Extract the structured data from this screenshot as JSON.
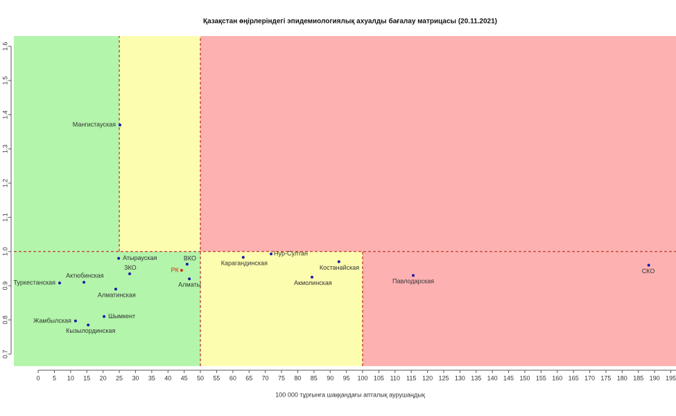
{
  "chart_data": {
    "type": "scatter",
    "title": "Қазақстан өңірлеріндегі эпидемиологиялық ахуалды бағалау матрицасы  (20.11.2021)",
    "xlabel": "100 000 тұрғынға шаққандағы апталық аурушаңдық",
    "xlim": [
      -7.5,
      196.6
    ],
    "ylim": [
      0.665,
      1.63
    ],
    "xticks": [
      0,
      5,
      10,
      15,
      20,
      25,
      30,
      35,
      40,
      45,
      50,
      55,
      60,
      65,
      70,
      75,
      80,
      85,
      90,
      95,
      100,
      105,
      110,
      115,
      120,
      125,
      130,
      135,
      140,
      145,
      150,
      155,
      160,
      165,
      170,
      175,
      180,
      185,
      190,
      195
    ],
    "yticks": [
      0.7,
      0.8,
      0.9,
      {
        "value": 1.0,
        "label": "1.0"
      },
      1.1,
      1.2,
      1.3,
      1.4,
      1.5,
      1.6
    ],
    "zones": [
      {
        "x": [
          -7.5,
          25
        ],
        "y": [
          1.0,
          1.63
        ],
        "color": "#b3f5ab"
      },
      {
        "x": [
          25,
          50
        ],
        "y": [
          1.0,
          1.63
        ],
        "color": "#fdfdb0"
      },
      {
        "x": [
          50,
          196.6
        ],
        "y": [
          1.0,
          1.63
        ],
        "color": "#fdb1b1"
      },
      {
        "x": [
          -7.5,
          50
        ],
        "y": [
          0.665,
          1.0
        ],
        "color": "#b3f5ab"
      },
      {
        "x": [
          50,
          100
        ],
        "y": [
          0.665,
          1.0
        ],
        "color": "#fdfdb0"
      },
      {
        "x": [
          100,
          196.6
        ],
        "y": [
          0.665,
          1.0
        ],
        "color": "#fdb1b1"
      }
    ],
    "dividers": [
      {
        "x": [
          25,
          25
        ],
        "y": [
          1.0,
          1.63
        ]
      },
      {
        "x": [
          50,
          50
        ],
        "y": [
          0.665,
          1.63
        ]
      },
      {
        "x": [
          100,
          100
        ],
        "y": [
          0.665,
          1.0
        ]
      },
      {
        "x": [
          -7.5,
          196.6
        ],
        "y": [
          1.0,
          1.0
        ]
      }
    ],
    "divider_color": "#c0392b",
    "labels": [
      "Мангистауская",
      "Атырауская",
      "ЗКО",
      "ВКО",
      "РК",
      "Алматы",
      "Актюбинская",
      "Туркестанская",
      "Алматинская",
      "Шымкент",
      "Жамбылская",
      "Кызылординская",
      "Карагандинская",
      "Нур-Султан",
      "Костанайская",
      "Акмолинская",
      "Павлодарская",
      "СКО"
    ],
    "x": [
      25.2,
      24.8,
      28.2,
      45.9,
      44.2,
      46.6,
      14.1,
      6.6,
      23.9,
      20.3,
      11.5,
      15.4,
      63.2,
      71.8,
      92.7,
      84.4,
      115.6,
      188.2
    ],
    "values": [
      1.37,
      0.98,
      0.935,
      0.963,
      0.945,
      0.92,
      0.91,
      0.908,
      0.89,
      0.81,
      0.797,
      0.785,
      0.983,
      0.993,
      0.97,
      0.925,
      0.93,
      0.96
    ],
    "colors": [
      "#1a1aa8",
      "#1a1aa8",
      "#1a1aa8",
      "#1a1aa8",
      "#d03010",
      "#1a1aa8",
      "#1a1aa8",
      "#1a1aa8",
      "#1a1aa8",
      "#1a1aa8",
      "#1a1aa8",
      "#1a1aa8",
      "#1a1aa8",
      "#1a1aa8",
      "#1a1aa8",
      "#1a1aa8",
      "#1a1aa8",
      "#1a1aa8"
    ]
  }
}
